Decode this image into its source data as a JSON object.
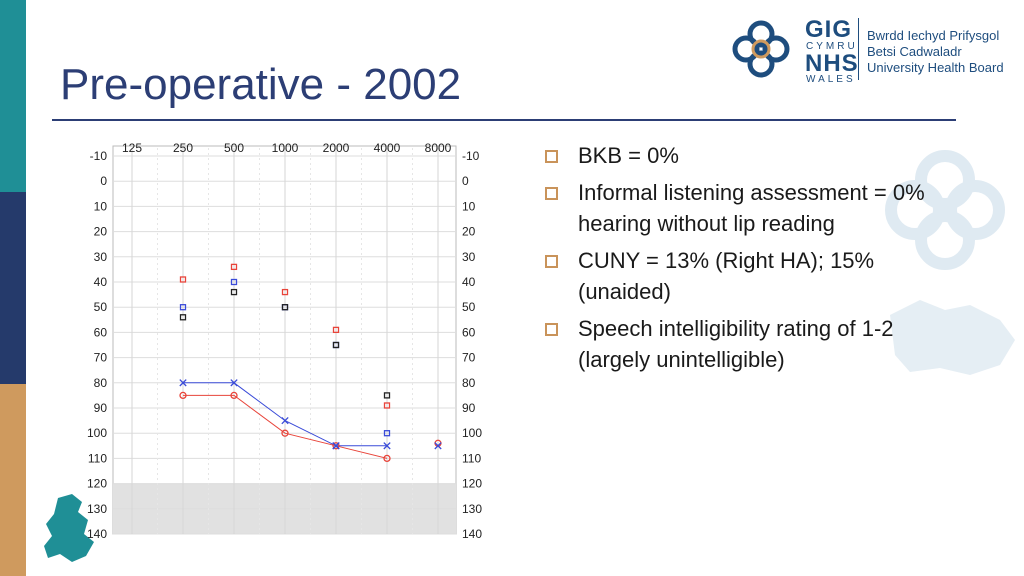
{
  "slide": {
    "title": "Pre-operative - 2002"
  },
  "logo": {
    "gig": "GIG",
    "cymru": "CYMRU",
    "nhs": "NHS",
    "wales": "WALES",
    "org_lines": [
      "Bwrdd Iechyd Prifysgol",
      "Betsi Cadwaladr",
      "University Health Board"
    ]
  },
  "bullets": [
    {
      "text": "BKB = 0%"
    },
    {
      "text": "Informal listening assessment = 0% hearing without lip reading"
    },
    {
      "text": "CUNY = 13% (Right HA); 15% (unaided)"
    },
    {
      "text": "Speech intelligibility rating of 1-2 (largely unintelligible)"
    }
  ],
  "colors": {
    "title": "#2c3e75",
    "band_teal": "#1f8f96",
    "band_navy": "#253a6b",
    "band_tan": "#cf9a5e",
    "right_ear": "#e8443a",
    "left_ear": "#3a4bd8",
    "bone": "#222222",
    "bullet_marker": "#c9935a"
  },
  "chart_data": {
    "type": "scatter",
    "x_categories": [
      "125",
      "250",
      "500",
      "1000",
      "2000",
      "4000",
      "8000"
    ],
    "y_ticks": [
      "-10",
      "0",
      "10",
      "20",
      "30",
      "40",
      "50",
      "60",
      "70",
      "80",
      "90",
      "100",
      "110",
      "120",
      "130",
      "140"
    ],
    "ylim": [
      -10,
      140
    ],
    "y_inverted": true,
    "shaded_range": [
      120,
      140
    ],
    "grid": true,
    "series": [
      {
        "marker": "circle",
        "color": "#e8443a",
        "connected": true,
        "x": [
          "250",
          "500",
          "1000",
          "2000",
          "4000"
        ],
        "y": [
          85,
          85,
          100,
          105,
          110
        ]
      },
      {
        "marker": "cross",
        "color": "#3a4bd8",
        "connected": true,
        "x": [
          "250",
          "500",
          "1000",
          "2000",
          "4000"
        ],
        "y": [
          80,
          80,
          95,
          105,
          105
        ]
      },
      {
        "marker": "circle",
        "color": "#e8443a",
        "connected": false,
        "x": [
          "8000"
        ],
        "y": [
          104
        ]
      },
      {
        "marker": "cross",
        "color": "#3a4bd8",
        "connected": false,
        "x": [
          "2000",
          "8000"
        ],
        "y": [
          105,
          105
        ]
      },
      {
        "marker": "square",
        "color": "#e8443a",
        "connected": false,
        "x": [
          "250",
          "500",
          "1000",
          "2000",
          "4000"
        ],
        "y": [
          39,
          34,
          44,
          59,
          89
        ]
      },
      {
        "marker": "square",
        "color": "#3a4bd8",
        "connected": false,
        "x": [
          "250",
          "500",
          "1000",
          "2000",
          "4000"
        ],
        "y": [
          50,
          40,
          50,
          65,
          100
        ]
      },
      {
        "marker": "square",
        "color": "#222222",
        "connected": false,
        "x": [
          "250",
          "500",
          "1000",
          "2000",
          "4000"
        ],
        "y": [
          54,
          44,
          50,
          65,
          85
        ]
      }
    ]
  }
}
